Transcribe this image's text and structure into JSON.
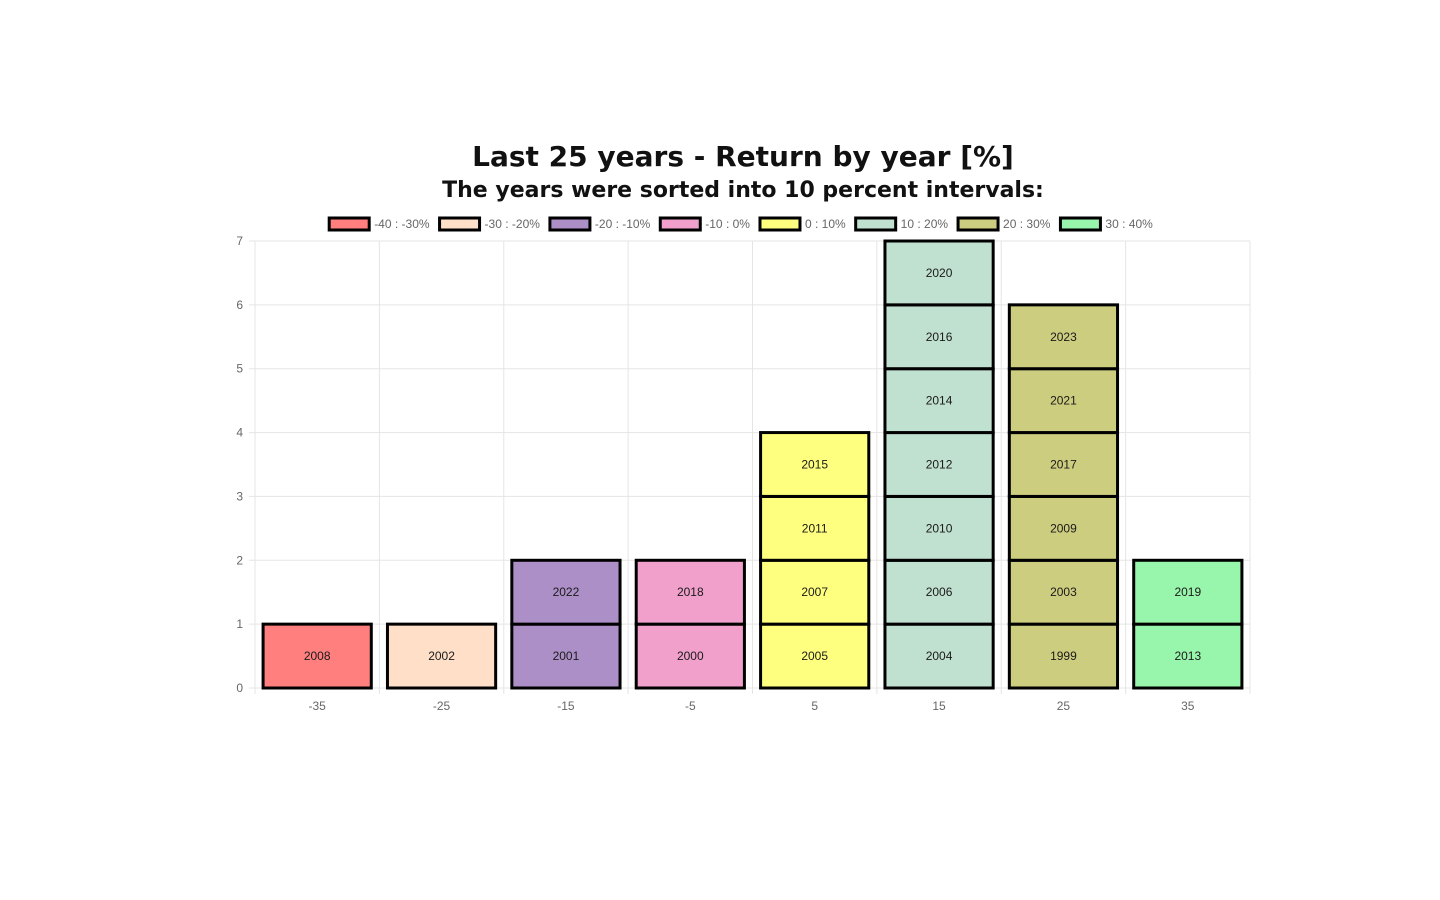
{
  "chart_data": {
    "type": "bar",
    "title": "Last 25 years - Return by year [%]",
    "subtitle": "The years were sorted into 10 percent intervals:",
    "categories": [
      "-35",
      "-25",
      "-15",
      "-5",
      "5",
      "15",
      "25",
      "35"
    ],
    "ylim": [
      0,
      7
    ],
    "yticks": [
      0,
      1,
      2,
      3,
      4,
      5,
      6,
      7
    ],
    "grid": true,
    "legend_position": "top",
    "series": [
      {
        "name": "-40 : -30%",
        "color": "#ff7f7f",
        "years": [
          "2008"
        ]
      },
      {
        "name": "-30 : -20%",
        "color": "#ffdfc8",
        "years": [
          "2002"
        ]
      },
      {
        "name": "-20 : -10%",
        "color": "#ad8fc7",
        "years": [
          "2001",
          "2022"
        ]
      },
      {
        "name": "-10 : 0%",
        "color": "#f0a0cb",
        "years": [
          "2000",
          "2018"
        ]
      },
      {
        "name": "0 : 10%",
        "color": "#ffff7f",
        "years": [
          "2005",
          "2007",
          "2011",
          "2015"
        ]
      },
      {
        "name": "10 : 20%",
        "color": "#c0e0d0",
        "years": [
          "2004",
          "2006",
          "2010",
          "2012",
          "2014",
          "2016",
          "2020"
        ]
      },
      {
        "name": "20 : 30%",
        "color": "#cdcd7f",
        "years": [
          "1999",
          "2003",
          "2009",
          "2017",
          "2021",
          "2023"
        ]
      },
      {
        "name": "30 : 40%",
        "color": "#98f5ac",
        "years": [
          "2013",
          "2019"
        ]
      }
    ],
    "values": [
      1,
      1,
      2,
      2,
      4,
      7,
      6,
      2
    ]
  },
  "style": {
    "border_color": "#000000",
    "grid_color": "#e5e5e5",
    "tick_color": "#666666"
  }
}
